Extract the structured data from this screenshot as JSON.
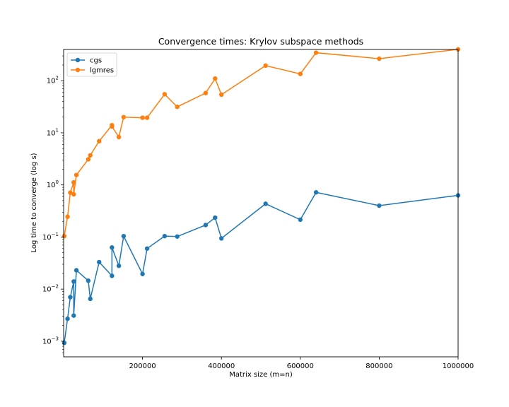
{
  "chart_data": {
    "type": "line",
    "title": "Convergence times: Krylov subspace methods",
    "xlabel": "Matrix size (m=n)",
    "ylabel": "Log time to converge (log s)",
    "xlim": [
      0,
      1000000
    ],
    "ylim_log10": [
      -3.3,
      2.6
    ],
    "yscale": "log",
    "grid": false,
    "legend_position": "top-left",
    "x_ticks": [
      {
        "value": 200000,
        "label": "200000"
      },
      {
        "value": 400000,
        "label": "400000"
      },
      {
        "value": 600000,
        "label": "600000"
      },
      {
        "value": 800000,
        "label": "800000"
      },
      {
        "value": 1000000,
        "label": "1000000"
      }
    ],
    "y_ticks": [
      {
        "exp": -3,
        "base": "10",
        "sup": "−3"
      },
      {
        "exp": -2,
        "base": "10",
        "sup": "−2"
      },
      {
        "exp": -1,
        "base": "10",
        "sup": "−1"
      },
      {
        "exp": 0,
        "base": "10",
        "sup": "0"
      },
      {
        "exp": 1,
        "base": "10",
        "sup": "1"
      },
      {
        "exp": 2,
        "base": "10",
        "sup": "2"
      }
    ],
    "series": [
      {
        "name": "cgs",
        "color": "#1f77b4",
        "x": [
          1600,
          10000,
          16900,
          25600,
          25600,
          32400,
          62500,
          67600,
          90000,
          122500,
          122500,
          140000,
          152100,
          200000,
          211600,
          256000,
          288000,
          360000,
          384000,
          400000,
          512000,
          600000,
          640000,
          800000,
          1000000
        ],
        "y": [
          0.00093,
          0.0027,
          0.007,
          0.014,
          0.0031,
          0.023,
          0.0145,
          0.0065,
          0.033,
          0.018,
          0.063,
          0.028,
          0.104,
          0.0195,
          0.06,
          0.104,
          0.102,
          0.17,
          0.235,
          0.094,
          0.435,
          0.215,
          0.72,
          0.4,
          0.63
        ]
      },
      {
        "name": "lgmres",
        "color": "#ff7f0e",
        "x": [
          1600,
          10000,
          16900,
          25600,
          25600,
          32400,
          62500,
          67600,
          90000,
          122500,
          122500,
          140000,
          152100,
          200000,
          211600,
          256000,
          288000,
          360000,
          384000,
          400000,
          512000,
          600000,
          640000,
          800000,
          1000000
        ],
        "y": [
          0.104,
          0.245,
          0.71,
          1.12,
          0.66,
          1.55,
          3.1,
          3.7,
          6.9,
          14.0,
          13.2,
          8.3,
          20.0,
          19.5,
          19.5,
          55.0,
          31.5,
          58.0,
          110.0,
          54.0,
          195.0,
          135.0,
          345.0,
          265.0,
          400.0
        ]
      }
    ]
  }
}
